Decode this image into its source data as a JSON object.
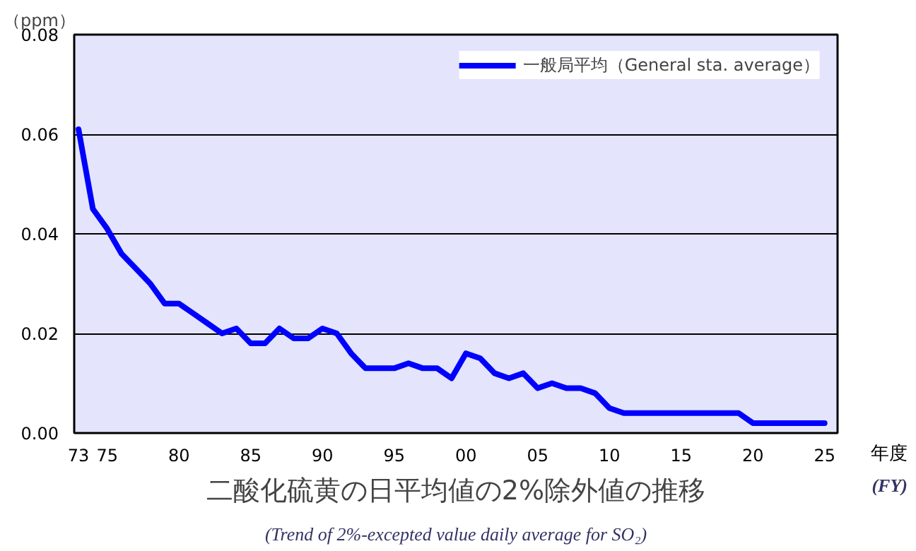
{
  "chart_data": {
    "type": "line",
    "title": "二酸化硫黄の日平均値の2%除外値の推移",
    "subtitle": "(Trend of 2%-excepted value daily average for SO₂)",
    "xlabel": "年度 (FY)",
    "ylabel": "（ppm）",
    "x": [
      1973,
      1974,
      1975,
      1976,
      1977,
      1978,
      1979,
      1980,
      1981,
      1982,
      1983,
      1984,
      1985,
      1986,
      1987,
      1988,
      1989,
      1990,
      1991,
      1992,
      1993,
      1994,
      1995,
      1996,
      1997,
      1998,
      1999,
      2000,
      2001,
      2002,
      2003,
      2004,
      2005,
      2006,
      2007,
      2008,
      2009,
      2010,
      2011,
      2012,
      2013,
      2014,
      2015,
      2016,
      2017,
      2018,
      2019,
      2020,
      2021,
      2022,
      2023,
      2024,
      2025
    ],
    "series": [
      {
        "name": "一般局平均（General sta. average）",
        "color": "#0000ff",
        "values": [
          0.061,
          0.045,
          0.041,
          0.036,
          0.033,
          0.03,
          0.026,
          0.026,
          0.024,
          0.022,
          0.02,
          0.021,
          0.018,
          0.018,
          0.021,
          0.019,
          0.019,
          0.021,
          0.02,
          0.016,
          0.013,
          0.013,
          0.013,
          0.014,
          0.013,
          0.013,
          0.011,
          0.016,
          0.015,
          0.012,
          0.011,
          0.012,
          0.009,
          0.01,
          0.009,
          0.009,
          0.008,
          0.005,
          0.004,
          0.004,
          0.004,
          0.004,
          0.004,
          0.004,
          0.004,
          0.004,
          0.004,
          0.002,
          0.002,
          0.002,
          0.002,
          0.002,
          0.002
        ]
      }
    ],
    "xlim": [
      1972.7,
      2025.9
    ],
    "ylim": [
      0,
      0.08
    ],
    "xticks": [
      {
        "value": 1973,
        "label": "73"
      },
      {
        "value": 1975,
        "label": "75"
      },
      {
        "value": 1980,
        "label": "80"
      },
      {
        "value": 1985,
        "label": "85"
      },
      {
        "value": 1990,
        "label": "90"
      },
      {
        "value": 1995,
        "label": "95"
      },
      {
        "value": 2000,
        "label": "00"
      },
      {
        "value": 2005,
        "label": "05"
      },
      {
        "value": 2010,
        "label": "10"
      },
      {
        "value": 2015,
        "label": "15"
      },
      {
        "value": 2020,
        "label": "20"
      },
      {
        "value": 2025,
        "label": "25"
      }
    ],
    "yticks": [
      {
        "value": 0,
        "label": "0.00"
      },
      {
        "value": 0.02,
        "label": "0.02"
      },
      {
        "value": 0.04,
        "label": "0.04"
      },
      {
        "value": 0.06,
        "label": "0.06"
      },
      {
        "value": 0.08,
        "label": "0.08"
      }
    ],
    "grid": "y",
    "legend": "top right",
    "marker": "none",
    "line_style": "solid"
  }
}
